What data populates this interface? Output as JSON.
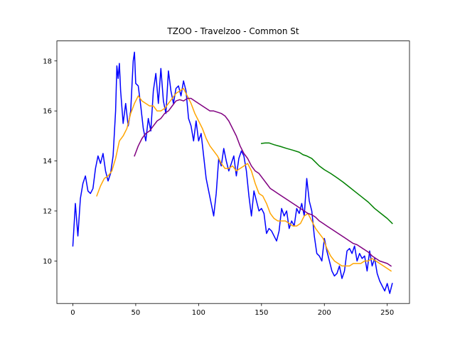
{
  "chart_data": {
    "type": "line",
    "title": "TZOO - Travelzoo - Common St",
    "xlabel": "",
    "ylabel": "",
    "xlim": [
      -12.7,
      267.7
    ],
    "ylim": [
      8.3,
      18.8
    ],
    "x_ticks": [
      0,
      50,
      100,
      150,
      200,
      250
    ],
    "y_ticks": [
      10,
      12,
      14,
      16,
      18
    ],
    "grid": false,
    "legend": "none",
    "series": [
      {
        "color": "#0000ff",
        "points": [
          [
            0,
            10.6
          ],
          [
            2,
            12.3
          ],
          [
            4,
            11.0
          ],
          [
            6,
            12.5
          ],
          [
            8,
            13.1
          ],
          [
            10,
            13.4
          ],
          [
            12,
            12.8
          ],
          [
            14,
            12.7
          ],
          [
            16,
            12.9
          ],
          [
            18,
            13.7
          ],
          [
            20,
            14.2
          ],
          [
            22,
            13.9
          ],
          [
            24,
            14.3
          ],
          [
            26,
            13.6
          ],
          [
            28,
            13.2
          ],
          [
            30,
            13.5
          ],
          [
            32,
            14.2
          ],
          [
            34,
            16.0
          ],
          [
            35,
            17.8
          ],
          [
            36,
            17.3
          ],
          [
            37,
            17.9
          ],
          [
            38,
            16.8
          ],
          [
            40,
            15.5
          ],
          [
            42,
            16.3
          ],
          [
            44,
            15.4
          ],
          [
            46,
            16.0
          ],
          [
            48,
            18.0
          ],
          [
            49,
            18.35
          ],
          [
            50,
            17.1
          ],
          [
            52,
            17.0
          ],
          [
            54,
            16.2
          ],
          [
            56,
            15.3
          ],
          [
            58,
            14.8
          ],
          [
            60,
            15.7
          ],
          [
            62,
            15.2
          ],
          [
            64,
            16.8
          ],
          [
            66,
            17.5
          ],
          [
            68,
            16.3
          ],
          [
            70,
            17.7
          ],
          [
            72,
            16.4
          ],
          [
            74,
            15.9
          ],
          [
            76,
            17.6
          ],
          [
            78,
            16.8
          ],
          [
            80,
            16.3
          ],
          [
            82,
            16.9
          ],
          [
            84,
            17.0
          ],
          [
            86,
            16.6
          ],
          [
            88,
            17.2
          ],
          [
            90,
            16.8
          ],
          [
            92,
            15.7
          ],
          [
            94,
            15.4
          ],
          [
            96,
            14.8
          ],
          [
            98,
            15.6
          ],
          [
            100,
            14.8
          ],
          [
            102,
            15.1
          ],
          [
            104,
            14.2
          ],
          [
            106,
            13.3
          ],
          [
            108,
            12.8
          ],
          [
            110,
            12.3
          ],
          [
            112,
            11.8
          ],
          [
            114,
            12.7
          ],
          [
            116,
            14.1
          ],
          [
            118,
            13.8
          ],
          [
            120,
            14.5
          ],
          [
            122,
            14.0
          ],
          [
            124,
            13.6
          ],
          [
            126,
            13.9
          ],
          [
            128,
            14.2
          ],
          [
            130,
            13.4
          ],
          [
            132,
            14.1
          ],
          [
            134,
            14.4
          ],
          [
            136,
            14.2
          ],
          [
            138,
            13.6
          ],
          [
            140,
            12.6
          ],
          [
            142,
            11.8
          ],
          [
            144,
            12.8
          ],
          [
            146,
            12.4
          ],
          [
            148,
            12.0
          ],
          [
            150,
            12.1
          ],
          [
            152,
            11.9
          ],
          [
            154,
            11.1
          ],
          [
            156,
            11.3
          ],
          [
            158,
            11.2
          ],
          [
            160,
            11.0
          ],
          [
            162,
            10.8
          ],
          [
            164,
            11.2
          ],
          [
            166,
            12.1
          ],
          [
            168,
            11.8
          ],
          [
            170,
            12.0
          ],
          [
            172,
            11.3
          ],
          [
            174,
            11.6
          ],
          [
            176,
            11.4
          ],
          [
            178,
            12.1
          ],
          [
            180,
            11.9
          ],
          [
            182,
            12.3
          ],
          [
            184,
            11.8
          ],
          [
            186,
            13.3
          ],
          [
            188,
            12.4
          ],
          [
            190,
            12.0
          ],
          [
            192,
            11.0
          ],
          [
            194,
            10.3
          ],
          [
            196,
            10.2
          ],
          [
            198,
            10.0
          ],
          [
            200,
            10.9
          ],
          [
            202,
            10.4
          ],
          [
            204,
            10.0
          ],
          [
            206,
            9.6
          ],
          [
            208,
            9.4
          ],
          [
            210,
            9.5
          ],
          [
            212,
            9.8
          ],
          [
            214,
            9.3
          ],
          [
            216,
            9.6
          ],
          [
            218,
            10.4
          ],
          [
            220,
            10.5
          ],
          [
            222,
            10.3
          ],
          [
            224,
            10.6
          ],
          [
            226,
            10.0
          ],
          [
            228,
            10.3
          ],
          [
            230,
            10.1
          ],
          [
            232,
            10.2
          ],
          [
            234,
            9.6
          ],
          [
            236,
            10.4
          ],
          [
            238,
            9.8
          ],
          [
            240,
            10.1
          ],
          [
            242,
            9.5
          ],
          [
            244,
            9.2
          ],
          [
            246,
            9.0
          ],
          [
            248,
            8.8
          ],
          [
            250,
            9.1
          ],
          [
            252,
            8.7
          ],
          [
            254,
            9.1
          ]
        ]
      },
      {
        "color": "#ffa500",
        "points": [
          [
            19,
            12.6
          ],
          [
            22,
            13.0
          ],
          [
            25,
            13.3
          ],
          [
            28,
            13.4
          ],
          [
            31,
            13.6
          ],
          [
            34,
            14.1
          ],
          [
            37,
            14.8
          ],
          [
            40,
            15.0
          ],
          [
            43,
            15.3
          ],
          [
            46,
            15.9
          ],
          [
            49,
            16.3
          ],
          [
            52,
            16.6
          ],
          [
            55,
            16.4
          ],
          [
            58,
            16.3
          ],
          [
            61,
            16.2
          ],
          [
            64,
            16.2
          ],
          [
            67,
            16.0
          ],
          [
            70,
            16.0
          ],
          [
            73,
            16.1
          ],
          [
            76,
            16.3
          ],
          [
            79,
            16.5
          ],
          [
            82,
            16.7
          ],
          [
            85,
            16.8
          ],
          [
            88,
            16.9
          ],
          [
            91,
            16.6
          ],
          [
            94,
            16.3
          ],
          [
            97,
            15.9
          ],
          [
            100,
            15.6
          ],
          [
            103,
            15.3
          ],
          [
            106,
            14.9
          ],
          [
            109,
            14.6
          ],
          [
            112,
            14.4
          ],
          [
            115,
            14.2
          ],
          [
            118,
            13.9
          ],
          [
            121,
            13.7
          ],
          [
            124,
            13.7
          ],
          [
            127,
            13.8
          ],
          [
            130,
            13.6
          ],
          [
            133,
            13.7
          ],
          [
            136,
            13.8
          ],
          [
            139,
            13.9
          ],
          [
            142,
            13.6
          ],
          [
            145,
            13.1
          ],
          [
            148,
            12.7
          ],
          [
            151,
            12.6
          ],
          [
            154,
            12.3
          ],
          [
            157,
            11.9
          ],
          [
            160,
            11.7
          ],
          [
            163,
            11.6
          ],
          [
            166,
            11.6
          ],
          [
            169,
            11.6
          ],
          [
            172,
            11.5
          ],
          [
            175,
            11.4
          ],
          [
            178,
            11.4
          ],
          [
            181,
            11.5
          ],
          [
            184,
            11.8
          ],
          [
            187,
            11.9
          ],
          [
            190,
            11.6
          ],
          [
            193,
            11.3
          ],
          [
            196,
            11.1
          ],
          [
            199,
            10.9
          ],
          [
            202,
            10.5
          ],
          [
            205,
            10.2
          ],
          [
            208,
            10.0
          ],
          [
            211,
            9.9
          ],
          [
            214,
            9.8
          ],
          [
            217,
            9.8
          ],
          [
            220,
            9.8
          ],
          [
            223,
            9.9
          ],
          [
            226,
            9.9
          ],
          [
            229,
            9.9
          ],
          [
            232,
            10.0
          ],
          [
            235,
            10.0
          ],
          [
            238,
            10.1
          ],
          [
            241,
            10.0
          ],
          [
            244,
            9.9
          ],
          [
            247,
            9.8
          ],
          [
            250,
            9.7
          ],
          [
            253,
            9.6
          ]
        ]
      },
      {
        "color": "#800080",
        "points": [
          [
            49,
            14.2
          ],
          [
            52,
            14.6
          ],
          [
            55,
            14.9
          ],
          [
            58,
            15.1
          ],
          [
            61,
            15.2
          ],
          [
            64,
            15.4
          ],
          [
            67,
            15.6
          ],
          [
            70,
            15.7
          ],
          [
            73,
            15.9
          ],
          [
            76,
            16.0
          ],
          [
            79,
            16.2
          ],
          [
            82,
            16.4
          ],
          [
            85,
            16.45
          ],
          [
            88,
            16.4
          ],
          [
            91,
            16.5
          ],
          [
            94,
            16.5
          ],
          [
            97,
            16.4
          ],
          [
            100,
            16.3
          ],
          [
            103,
            16.2
          ],
          [
            106,
            16.1
          ],
          [
            109,
            16.0
          ],
          [
            112,
            16.0
          ],
          [
            115,
            15.95
          ],
          [
            118,
            15.9
          ],
          [
            121,
            15.8
          ],
          [
            124,
            15.6
          ],
          [
            127,
            15.3
          ],
          [
            130,
            15.0
          ],
          [
            133,
            14.6
          ],
          [
            136,
            14.3
          ],
          [
            139,
            14.1
          ],
          [
            142,
            13.8
          ],
          [
            145,
            13.6
          ],
          [
            148,
            13.5
          ],
          [
            151,
            13.3
          ],
          [
            154,
            13.1
          ],
          [
            157,
            12.9
          ],
          [
            160,
            12.8
          ],
          [
            163,
            12.7
          ],
          [
            166,
            12.6
          ],
          [
            169,
            12.5
          ],
          [
            172,
            12.4
          ],
          [
            175,
            12.3
          ],
          [
            178,
            12.2
          ],
          [
            181,
            12.1
          ],
          [
            184,
            12.0
          ],
          [
            187,
            11.9
          ],
          [
            190,
            11.85
          ],
          [
            193,
            11.75
          ],
          [
            196,
            11.6
          ],
          [
            199,
            11.5
          ],
          [
            202,
            11.4
          ],
          [
            205,
            11.3
          ],
          [
            208,
            11.2
          ],
          [
            211,
            11.1
          ],
          [
            214,
            11.0
          ],
          [
            217,
            10.9
          ],
          [
            220,
            10.8
          ],
          [
            223,
            10.7
          ],
          [
            226,
            10.65
          ],
          [
            229,
            10.55
          ],
          [
            232,
            10.45
          ],
          [
            235,
            10.35
          ],
          [
            238,
            10.2
          ],
          [
            241,
            10.1
          ],
          [
            244,
            10.0
          ],
          [
            247,
            9.95
          ],
          [
            250,
            9.9
          ],
          [
            253,
            9.8
          ]
        ]
      },
      {
        "color": "#008000",
        "points": [
          [
            150,
            14.7
          ],
          [
            153,
            14.72
          ],
          [
            156,
            14.72
          ],
          [
            160,
            14.65
          ],
          [
            165,
            14.58
          ],
          [
            170,
            14.5
          ],
          [
            175,
            14.43
          ],
          [
            180,
            14.35
          ],
          [
            183,
            14.25
          ],
          [
            186,
            14.2
          ],
          [
            190,
            14.1
          ],
          [
            193,
            13.95
          ],
          [
            196,
            13.8
          ],
          [
            200,
            13.65
          ],
          [
            205,
            13.5
          ],
          [
            210,
            13.33
          ],
          [
            215,
            13.15
          ],
          [
            220,
            12.95
          ],
          [
            225,
            12.75
          ],
          [
            230,
            12.55
          ],
          [
            235,
            12.35
          ],
          [
            240,
            12.1
          ],
          [
            245,
            11.9
          ],
          [
            250,
            11.7
          ],
          [
            254,
            11.5
          ]
        ]
      }
    ]
  }
}
